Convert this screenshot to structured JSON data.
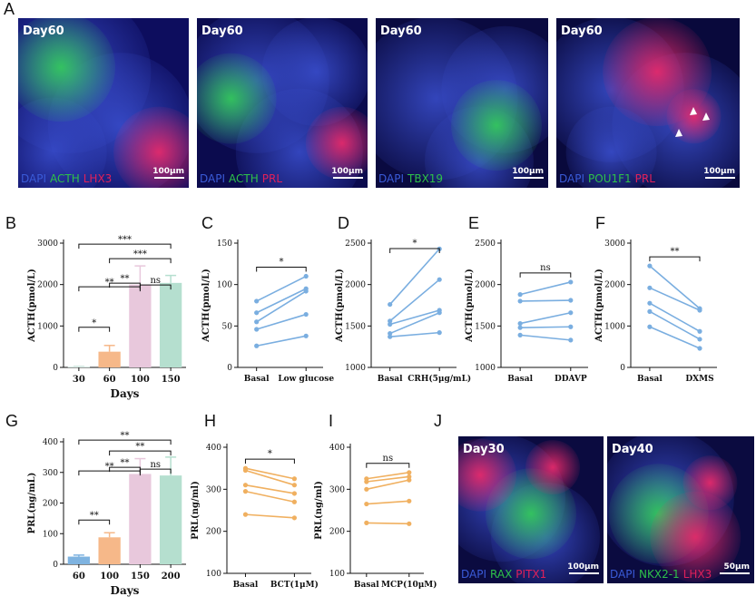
{
  "figure": {
    "panel_letters": [
      "A",
      "B",
      "C",
      "D",
      "E",
      "F",
      "G",
      "H",
      "I",
      "J"
    ]
  },
  "micrographs": [
    {
      "panel": "A",
      "day": "Day60",
      "legend": [
        {
          "t": "DAPI",
          "c": "#3a5bd8"
        },
        {
          "t": "ACTH",
          "c": "#2ec04a"
        },
        {
          "t": "LHX3",
          "c": "#e0205a"
        }
      ],
      "scale": "100μm",
      "bg": "#0d0d5e"
    },
    {
      "panel": "A",
      "day": "Day60",
      "legend": [
        {
          "t": "DAPI",
          "c": "#3a5bd8"
        },
        {
          "t": "ACTH",
          "c": "#2ec04a"
        },
        {
          "t": "PRL",
          "c": "#e0205a"
        }
      ],
      "scale": "100μm",
      "bg": "#0b0b4e"
    },
    {
      "panel": "A",
      "day": "Day60",
      "legend": [
        {
          "t": "DAPI",
          "c": "#3a5bd8"
        },
        {
          "t": "TBX19",
          "c": "#2ec04a"
        }
      ],
      "scale": "100μm",
      "bg": "#0a0a40"
    },
    {
      "panel": "A",
      "day": "Day60",
      "legend": [
        {
          "t": "DAPI",
          "c": "#3a5bd8"
        },
        {
          "t": "POU1F1",
          "c": "#2ec04a"
        },
        {
          "t": "PRL",
          "c": "#e0205a"
        }
      ],
      "scale": "100μm",
      "bg": "#09093c"
    },
    {
      "panel": "J",
      "day": "Day30",
      "legend": [
        {
          "t": "DAPI",
          "c": "#3a5bd8"
        },
        {
          "t": "RAX",
          "c": "#2ec04a"
        },
        {
          "t": "PITX1",
          "c": "#e0205a"
        }
      ],
      "scale": "100μm",
      "bg": "#0b0b40"
    },
    {
      "panel": "J",
      "day": "Day40",
      "legend": [
        {
          "t": "DAPI",
          "c": "#3a5bd8"
        },
        {
          "t": "NKX2-1",
          "c": "#2ec04a"
        },
        {
          "t": "LHX3",
          "c": "#e0205a"
        }
      ],
      "scale": "50μm",
      "bg": "#0b0b40"
    }
  ],
  "chart_data": [
    {
      "panel": "B",
      "type": "bar",
      "categories": [
        "30",
        "60",
        "100",
        "150"
      ],
      "values": [
        20,
        380,
        2000,
        2040
      ],
      "errors": [
        10,
        150,
        450,
        180
      ],
      "colors": [
        "#d9ece6",
        "#f6b889",
        "#e8c8dc",
        "#b5dfcf"
      ],
      "xlabel": "Days",
      "ylabel": "ACTH(pmol/L)",
      "ylim": [
        0,
        3000
      ],
      "yticks": [
        0,
        1000,
        2000,
        3000
      ],
      "significance": [
        {
          "a": 0,
          "b": 1,
          "label": "*"
        },
        {
          "a": 1,
          "b": 2,
          "label": "**"
        },
        {
          "a": 0,
          "b": 2,
          "label": "**"
        },
        {
          "a": 2,
          "b": 3,
          "label": "ns"
        },
        {
          "a": 1,
          "b": 3,
          "label": "***"
        },
        {
          "a": 0,
          "b": 3,
          "label": "***"
        }
      ]
    },
    {
      "panel": "C",
      "type": "line",
      "categories": [
        "Basal",
        "Low glucose"
      ],
      "pairs": [
        [
          80,
          110
        ],
        [
          66,
          95
        ],
        [
          55,
          92
        ],
        [
          46,
          64
        ],
        [
          26,
          38
        ]
      ],
      "color": "#7aaee0",
      "ylabel": "ACTH(pmol/L)",
      "ylim": [
        0,
        150
      ],
      "yticks": [
        0,
        50,
        100,
        150
      ],
      "significance": "*"
    },
    {
      "panel": "D",
      "type": "line",
      "categories": [
        "Basal",
        "CRH(5μg/mL)"
      ],
      "pairs": [
        [
          1760,
          2430
        ],
        [
          1560,
          2060
        ],
        [
          1520,
          1690
        ],
        [
          1410,
          1660
        ],
        [
          1370,
          1420
        ]
      ],
      "color": "#7aaee0",
      "ylabel": "ACTH(pmol/L)",
      "ylim": [
        1000,
        2500
      ],
      "yticks": [
        1000,
        1500,
        2000,
        2500
      ],
      "significance": "*"
    },
    {
      "panel": "E",
      "type": "line",
      "categories": [
        "Basal",
        "DDAVP"
      ],
      "pairs": [
        [
          1880,
          2030
        ],
        [
          1800,
          1810
        ],
        [
          1530,
          1660
        ],
        [
          1480,
          1490
        ],
        [
          1390,
          1330
        ]
      ],
      "color": "#7aaee0",
      "ylabel": "ACTH(pmol/L)",
      "ylim": [
        1000,
        2500
      ],
      "yticks": [
        1000,
        1500,
        2000,
        2500
      ],
      "significance": "ns"
    },
    {
      "panel": "F",
      "type": "line",
      "categories": [
        "Basal",
        "DXMS"
      ],
      "pairs": [
        [
          2450,
          1420
        ],
        [
          1920,
          1380
        ],
        [
          1550,
          870
        ],
        [
          1350,
          680
        ],
        [
          980,
          460
        ]
      ],
      "color": "#7aaee0",
      "ylabel": "ACTH(pmol/L)",
      "ylim": [
        0,
        3000
      ],
      "yticks": [
        0,
        1000,
        2000,
        3000
      ],
      "significance": "**"
    },
    {
      "panel": "G",
      "type": "bar",
      "categories": [
        "60",
        "100",
        "150",
        "200"
      ],
      "values": [
        25,
        88,
        295,
        290
      ],
      "errors": [
        5,
        15,
        50,
        60
      ],
      "colors": [
        "#7fb3e0",
        "#f6b889",
        "#e8c8dc",
        "#b5dfcf"
      ],
      "xlabel": "Days",
      "ylabel": "PRL(ng/mL)",
      "ylim": [
        0,
        400
      ],
      "yticks": [
        0,
        100,
        200,
        300,
        400
      ],
      "significance": [
        {
          "a": 0,
          "b": 1,
          "label": "**"
        },
        {
          "a": 1,
          "b": 2,
          "label": "**"
        },
        {
          "a": 0,
          "b": 2,
          "label": "**"
        },
        {
          "a": 2,
          "b": 3,
          "label": "ns"
        },
        {
          "a": 1,
          "b": 3,
          "label": "**"
        },
        {
          "a": 0,
          "b": 3,
          "label": "**"
        }
      ]
    },
    {
      "panel": "H",
      "type": "line",
      "categories": [
        "Basal",
        "BCT(1μM)"
      ],
      "pairs": [
        [
          350,
          325
        ],
        [
          345,
          310
        ],
        [
          310,
          290
        ],
        [
          295,
          270
        ],
        [
          240,
          232
        ]
      ],
      "color": "#f0b060",
      "ylabel": "PRL(ng/ml)",
      "ylim": [
        100,
        400
      ],
      "yticks": [
        100,
        200,
        300,
        400
      ],
      "significance": "*"
    },
    {
      "panel": "I",
      "type": "line",
      "categories": [
        "Basal",
        "MCP(10μM)"
      ],
      "pairs": [
        [
          325,
          340
        ],
        [
          318,
          330
        ],
        [
          300,
          322
        ],
        [
          265,
          272
        ],
        [
          220,
          218
        ]
      ],
      "color": "#f0b060",
      "ylabel": "PRL(ng/ml)",
      "ylim": [
        100,
        400
      ],
      "yticks": [
        100,
        200,
        300,
        400
      ],
      "significance": "ns"
    }
  ]
}
